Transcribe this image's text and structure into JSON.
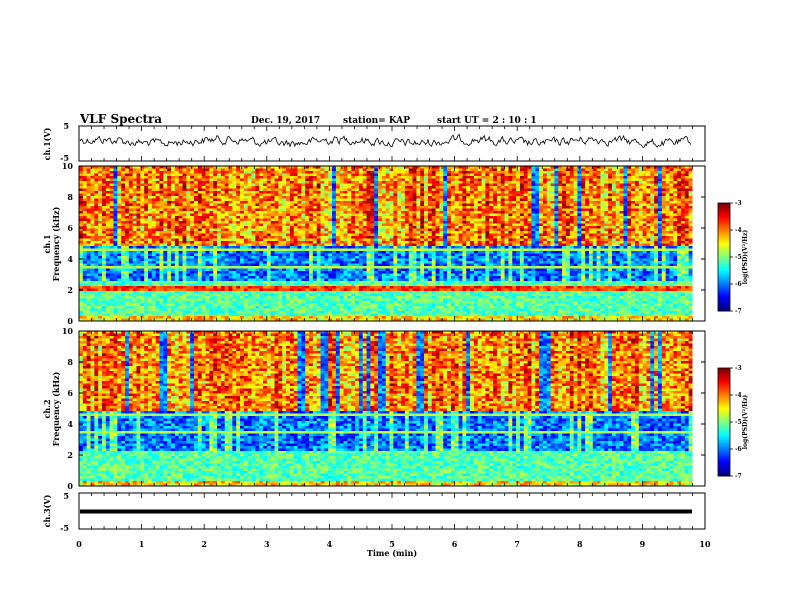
{
  "header": {
    "title": "VLF Spectra",
    "date": "Dec. 19, 2017",
    "station": "station= KAP",
    "start": "start  UT =  2 : 10 : 1"
  },
  "chart_data": [
    {
      "type": "line",
      "name": "ch1-waveform",
      "ylabel": "ch.1(V)",
      "ylim": [
        -5,
        5
      ],
      "yticks": [
        "5",
        "-5"
      ],
      "xlim": [
        0,
        10
      ],
      "x_unit": "min"
    },
    {
      "type": "heatmap",
      "name": "ch1-spectrogram",
      "ylabel": "ch.1 Frequency (kHz)",
      "ylim": [
        0,
        10
      ],
      "yticks": [
        "0",
        "2",
        "4",
        "6",
        "8",
        "10"
      ],
      "xlim": [
        0,
        10
      ],
      "data_end_min": 9.8,
      "colorbar": {
        "label": "log(PSD)(V²/Hz)",
        "range": [
          -7,
          -3
        ],
        "ticks": [
          "-3",
          "-4",
          "-5",
          "-6",
          "-7"
        ]
      }
    },
    {
      "type": "heatmap",
      "name": "ch2-spectrogram",
      "ylabel": "ch.2 Frequency (kHz)",
      "ylim": [
        0,
        10
      ],
      "yticks": [
        "0",
        "2",
        "4",
        "6",
        "8",
        "10"
      ],
      "xlim": [
        0,
        10
      ],
      "data_end_min": 9.8,
      "colorbar": {
        "label": "log(PSD)(V²/Hz)",
        "range": [
          -7,
          -3
        ],
        "ticks": [
          "-3",
          "-4",
          "-5",
          "-6",
          "-7"
        ]
      }
    },
    {
      "type": "line",
      "name": "ch3-waveform",
      "ylabel": "ch.3(V)",
      "ylim": [
        -5,
        5
      ],
      "yticks": [
        "5",
        "-5"
      ],
      "xlim": [
        0,
        10
      ],
      "constant_value": 0
    }
  ],
  "xaxis": {
    "label": "Time  (min)",
    "ticks": [
      "0",
      "1",
      "2",
      "3",
      "4",
      "5",
      "6",
      "7",
      "8",
      "9",
      "10"
    ]
  },
  "colors": {
    "axis": "#000000",
    "trace": "#000000"
  }
}
